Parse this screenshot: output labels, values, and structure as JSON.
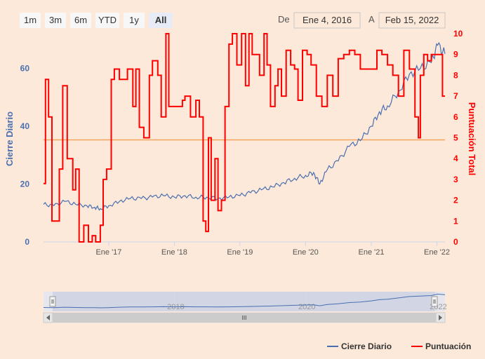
{
  "range_selector": {
    "buttons": [
      "1m",
      "3m",
      "6m",
      "YTD",
      "1y",
      "All"
    ],
    "active": "All",
    "from_label": "De",
    "to_label": "A",
    "from_value": "Ene 4, 2016",
    "to_value": "Feb 15, 2022"
  },
  "navigator": {
    "year_labels": [
      "2018",
      "2020",
      "2022"
    ],
    "scroll_grip": "III"
  },
  "colors": {
    "background": "#fde9d9",
    "price": "#4a6fb0",
    "score": "#ff0000",
    "threshold": "#f4a460",
    "left_axis": "#4a6fb0",
    "right_axis": "#ff0000"
  },
  "chart_data": {
    "type": "line",
    "x_ticks": [
      "Ene '17",
      "Ene '18",
      "Ene '19",
      "Ene '20",
      "Ene '21",
      "Ene '22"
    ],
    "x_tick_dates": [
      "2017-01-01",
      "2018-01-01",
      "2019-01-01",
      "2020-01-01",
      "2021-01-01",
      "2022-01-01"
    ],
    "x_range": [
      "2016-01-04",
      "2022-02-15"
    ],
    "left_axis": {
      "label": "Cierre Diario",
      "ticks": [
        "0",
        "20",
        "40",
        "60"
      ],
      "range": [
        0,
        72
      ]
    },
    "right_axis": {
      "label": "Puntuación Total",
      "ticks": [
        "0",
        "1",
        "2",
        "3",
        "4",
        "5",
        "6",
        "7",
        "8",
        "9",
        "10"
      ],
      "range": [
        0,
        10
      ]
    },
    "threshold_line": {
      "axis": "right",
      "value": 4.9
    },
    "series": [
      {
        "name": "Cierre Diario",
        "axis": "left",
        "x": [
          "2016-01-04",
          "2016-03-01",
          "2016-05-01",
          "2016-07-01",
          "2016-09-01",
          "2016-10-15",
          "2016-11-15",
          "2017-01-01",
          "2017-03-01",
          "2017-05-01",
          "2017-07-01",
          "2017-09-01",
          "2017-11-01",
          "2018-01-01",
          "2018-03-01",
          "2018-05-01",
          "2018-07-01",
          "2018-09-01",
          "2018-11-01",
          "2019-01-01",
          "2019-03-01",
          "2019-05-01",
          "2019-07-01",
          "2019-09-01",
          "2019-11-01",
          "2020-01-01",
          "2020-02-15",
          "2020-03-20",
          "2020-05-01",
          "2020-07-01",
          "2020-09-01",
          "2020-11-01",
          "2021-01-01",
          "2021-02-15",
          "2021-04-01",
          "2021-06-01",
          "2021-08-01",
          "2021-10-01",
          "2021-12-01",
          "2022-01-05",
          "2022-02-15"
        ],
        "values": [
          13,
          12.5,
          14,
          13,
          12.5,
          12,
          11.5,
          12.5,
          14,
          15,
          15,
          15.5,
          16,
          15.5,
          16,
          15.5,
          15.5,
          15,
          15.5,
          16,
          17,
          18,
          19,
          20.5,
          22,
          23,
          24,
          20,
          25,
          28,
          33,
          35,
          40,
          45,
          47,
          52,
          58,
          60,
          62,
          68,
          65
        ]
      },
      {
        "name": "Puntuación",
        "axis": "right",
        "x": [
          "2016-01-04",
          "2016-01-15",
          "2016-02-01",
          "2016-02-20",
          "2016-03-15",
          "2016-04-01",
          "2016-04-20",
          "2016-05-15",
          "2016-06-15",
          "2016-07-01",
          "2016-07-20",
          "2016-08-15",
          "2016-09-10",
          "2016-10-01",
          "2016-10-20",
          "2016-11-15",
          "2016-12-01",
          "2016-12-20",
          "2017-01-15",
          "2017-02-01",
          "2017-03-01",
          "2017-04-15",
          "2017-05-15",
          "2017-06-01",
          "2017-06-20",
          "2017-07-15",
          "2017-08-15",
          "2017-09-01",
          "2017-10-01",
          "2017-10-20",
          "2017-11-15",
          "2017-12-01",
          "2017-12-20",
          "2018-01-15",
          "2018-02-15",
          "2018-03-01",
          "2018-04-01",
          "2018-05-01",
          "2018-05-20",
          "2018-06-10",
          "2018-06-25",
          "2018-07-10",
          "2018-07-25",
          "2018-08-15",
          "2018-09-01",
          "2018-09-20",
          "2018-10-10",
          "2018-11-01",
          "2018-11-20",
          "2018-12-15",
          "2019-01-10",
          "2019-02-01",
          "2019-02-20",
          "2019-03-10",
          "2019-04-01",
          "2019-04-20",
          "2019-05-15",
          "2019-06-01",
          "2019-06-20",
          "2019-07-15",
          "2019-08-01",
          "2019-08-20",
          "2019-09-15",
          "2019-10-10",
          "2019-11-01",
          "2019-11-20",
          "2019-12-15",
          "2020-01-10",
          "2020-02-01",
          "2020-03-01",
          "2020-04-01",
          "2020-05-01",
          "2020-06-01",
          "2020-07-01",
          "2020-08-01",
          "2020-09-01",
          "2020-10-01",
          "2020-11-01",
          "2020-12-01",
          "2021-01-01",
          "2021-02-01",
          "2021-03-01",
          "2021-04-01",
          "2021-05-01",
          "2021-06-01",
          "2021-07-01",
          "2021-08-01",
          "2021-09-01",
          "2021-09-20",
          "2021-10-01",
          "2021-10-20",
          "2021-11-10",
          "2021-12-01",
          "2021-12-20",
          "2022-01-10",
          "2022-02-01",
          "2022-02-15"
        ],
        "values": [
          2.8,
          7.8,
          6,
          1,
          1,
          3.5,
          7.5,
          4,
          2.5,
          3.5,
          0,
          0.8,
          0,
          0.3,
          0,
          0.8,
          3,
          3.5,
          7.8,
          8.3,
          7.8,
          8.3,
          6.5,
          8.3,
          5.5,
          5,
          8,
          8.7,
          8,
          6,
          10,
          6.5,
          6.5,
          6.5,
          6.8,
          7,
          6,
          6.8,
          6,
          1,
          0.5,
          5,
          2,
          4,
          1.5,
          2,
          6.5,
          9.5,
          10,
          8.5,
          10,
          7.5,
          10,
          9,
          9,
          8,
          10,
          8.5,
          6.5,
          7.5,
          8.3,
          7,
          9.2,
          8.5,
          8.3,
          6.8,
          9.2,
          9,
          8.5,
          7,
          6.5,
          8,
          7,
          8.8,
          9,
          9.2,
          9,
          8.3,
          8.3,
          8.3,
          9.2,
          9,
          8.5,
          8,
          7,
          9.2,
          8.3,
          6,
          5,
          8,
          9,
          8.7,
          9,
          9,
          9,
          7,
          7
        ]
      }
    ],
    "legend": {
      "placement": "bottom-right",
      "entries": [
        "Cierre Diario",
        "Puntuación"
      ]
    },
    "grid": false
  }
}
